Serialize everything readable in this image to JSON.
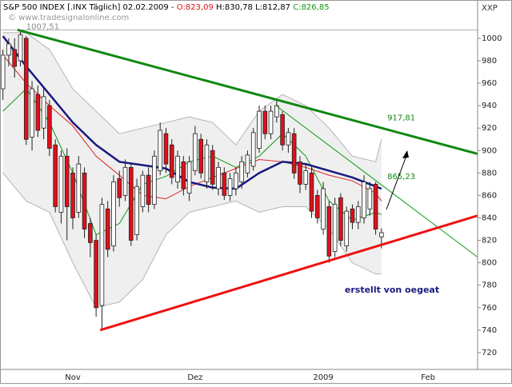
{
  "chart_data": {
    "type": "candlestick",
    "title": "S&P 500 INDEX [.INX  Täglich] 02.02.2009 -",
    "ohlc_labels": [
      "O:823,09",
      "H:830,78",
      "L:812,87",
      "C:826,85"
    ],
    "watermark": "© www.tradesignalonline.com",
    "corner_label": "XXP",
    "annotation": "erstellt von oegeat",
    "categories": [
      null,
      null,
      null,
      null,
      null,
      null,
      null,
      null,
      null,
      null,
      null,
      null,
      "Nov",
      null,
      null,
      null,
      null,
      null,
      null,
      null,
      null,
      null,
      null,
      null,
      null,
      null,
      null,
      null,
      null,
      null,
      null,
      null,
      null,
      "Dez",
      null,
      null,
      null,
      null,
      null,
      null,
      null,
      null,
      null,
      null,
      null,
      null,
      null,
      null,
      null,
      null,
      null,
      null,
      null,
      null,
      null,
      "2009",
      null,
      null,
      null,
      null,
      null,
      null,
      null,
      null,
      null,
      null,
      null,
      null,
      null,
      null,
      null,
      null,
      null,
      "Feb",
      null,
      null,
      null,
      null,
      null,
      null,
      null,
      null
    ],
    "open": [
      955,
      985,
      990,
      980,
      1000,
      912,
      950,
      920,
      940,
      905,
      845,
      895,
      880,
      845,
      880,
      835,
      820,
      762,
      848,
      815,
      875,
      860,
      885,
      825,
      850,
      878,
      852,
      882,
      915,
      905,
      872,
      890,
      862,
      882,
      910,
      872,
      900,
      866,
      880,
      860,
      866,
      872,
      880,
      886,
      902,
      935,
      915,
      930,
      932,
      905,
      915,
      890,
      870,
      880,
      860,
      830,
      850,
      810,
      858,
      815,
      848,
      836,
      840,
      848,
      870,
      823.09,
      null,
      null,
      null,
      null,
      null,
      null,
      null,
      null,
      null,
      null,
      null,
      null,
      null,
      null,
      null,
      null
    ],
    "high": [
      990,
      1000,
      1000,
      1007.51,
      1002,
      962,
      958,
      955,
      945,
      910,
      900,
      902,
      885,
      895,
      885,
      840,
      825,
      858,
      855,
      878,
      882,
      892,
      888,
      875,
      882,
      885,
      900,
      925,
      920,
      910,
      900,
      895,
      895,
      922,
      915,
      910,
      905,
      890,
      885,
      880,
      885,
      895,
      900,
      920,
      940,
      940,
      940,
      945,
      935,
      920,
      920,
      895,
      888,
      885,
      865,
      872,
      855,
      858,
      862,
      850,
      852,
      855,
      878,
      872,
      872,
      830.78,
      null,
      null,
      null,
      null,
      null,
      null,
      null,
      null,
      null,
      null,
      null,
      null,
      null,
      null,
      null,
      null
    ],
    "low": [
      945,
      975,
      965,
      975,
      905,
      900,
      912,
      910,
      895,
      845,
      835,
      820,
      830,
      840,
      822,
      805,
      752,
      741,
      805,
      810,
      850,
      855,
      815,
      820,
      845,
      845,
      848,
      878,
      880,
      870,
      866,
      860,
      855,
      878,
      875,
      866,
      865,
      860,
      856,
      855,
      860,
      866,
      876,
      882,
      898,
      910,
      910,
      925,
      900,
      898,
      875,
      862,
      865,
      840,
      835,
      825,
      800,
      805,
      815,
      810,
      830,
      830,
      835,
      842,
      825,
      812.87,
      null,
      null,
      null,
      null,
      null,
      null,
      null,
      null,
      null,
      null,
      null,
      null,
      null,
      null,
      null,
      null
    ],
    "close": [
      985,
      995,
      975,
      1003,
      910,
      955,
      918,
      948,
      902,
      850,
      895,
      850,
      840,
      888,
      830,
      818,
      760,
      852,
      812,
      872,
      858,
      885,
      820,
      868,
      878,
      852,
      895,
      918,
      888,
      876,
      895,
      866,
      890,
      915,
      880,
      905,
      870,
      885,
      860,
      875,
      880,
      890,
      896,
      916,
      935,
      915,
      935,
      940,
      905,
      916,
      880,
      870,
      882,
      846,
      840,
      866,
      806,
      852,
      820,
      846,
      836,
      850,
      872,
      866,
      830,
      826.85,
      null,
      null,
      null,
      null,
      null,
      null,
      null,
      null,
      null,
      null,
      null,
      null,
      null,
      null,
      null,
      null
    ],
    "up_color": "#ffffff",
    "down_color": "#e0101a",
    "indicators": [
      {
        "x": [
          0,
          4,
          8,
          12,
          16,
          20,
          24,
          28,
          32,
          36,
          40,
          44,
          48,
          52,
          56,
          60,
          64,
          65
        ],
        "values": [
          1005,
          1005,
          990,
          955,
          935,
          915,
          920,
          925,
          930,
          925,
          905,
          935,
          950,
          940,
          920,
          895,
          890,
          910
        ],
        "color": "#b4b4b4",
        "width": 1,
        "band": "upper"
      },
      {
        "x": [
          0,
          4,
          8,
          12,
          16,
          20,
          24,
          28,
          32,
          36,
          40,
          44,
          48,
          52,
          56,
          60,
          64,
          65
        ],
        "values": [
          880,
          855,
          845,
          800,
          760,
          765,
          785,
          825,
          845,
          850,
          855,
          845,
          850,
          850,
          830,
          800,
          790,
          790
        ],
        "color": "#b4b4b4",
        "width": 1,
        "band": "lower"
      },
      {
        "x": [
          0,
          4,
          8,
          12,
          16,
          20,
          24,
          28,
          32,
          36,
          40,
          44,
          48,
          52,
          56,
          60,
          64,
          65
        ],
        "values": [
          935,
          955,
          925,
          880,
          825,
          835,
          870,
          877,
          890,
          895,
          885,
          895,
          915,
          895,
          855,
          838,
          845,
          843
        ],
        "color": "#119911",
        "width": 1
      },
      {
        "x": [
          0,
          4,
          8,
          12,
          16,
          20,
          24,
          28,
          32,
          36,
          40,
          44,
          48,
          52,
          56,
          60,
          64,
          65
        ],
        "values": [
          985,
          960,
          940,
          922,
          895,
          878,
          860,
          857,
          868,
          876,
          884,
          892,
          890,
          885,
          878,
          873,
          862,
          855
        ],
        "color": "#e02020",
        "width": 1
      },
      {
        "x": [
          0,
          4,
          8,
          12,
          16,
          20,
          24,
          28,
          32,
          36,
          40,
          44,
          48,
          52,
          56,
          60,
          64,
          65
        ],
        "values": [
          1002,
          975,
          950,
          925,
          905,
          890,
          887,
          884,
          872,
          867,
          866,
          880,
          890,
          888,
          882,
          876,
          868,
          866
        ],
        "color": "#1a1a80",
        "width": 2.5
      }
    ],
    "trendlines": [
      {
        "x": [
          2.5,
          81.5
        ],
        "values": [
          1007.51,
          897
        ],
        "color": "#118811",
        "width": 3
      },
      {
        "x": [
          46.9,
          81.5
        ],
        "values": [
          940,
          805
        ],
        "color": "#119911",
        "width": 1
      },
      {
        "x": [
          16.7,
          81.5
        ],
        "values": [
          740,
          842
        ],
        "color": "#ee1111",
        "width": 3
      }
    ],
    "level_labels": [
      {
        "value": 1007.51,
        "label": "1007,51",
        "x": 4,
        "color": "#888888"
      },
      {
        "value": 917.81,
        "label": "917,81",
        "x": 66,
        "color": "#118811"
      },
      {
        "value": 865.23,
        "label": "865,23",
        "x": 66,
        "color": "#118811"
      }
    ],
    "ylim": [
      705,
      1027
    ],
    "yticks": [
      720,
      740,
      760,
      780,
      800,
      820,
      840,
      860,
      880,
      900,
      920,
      940,
      960,
      980,
      1000
    ],
    "grid": false
  }
}
